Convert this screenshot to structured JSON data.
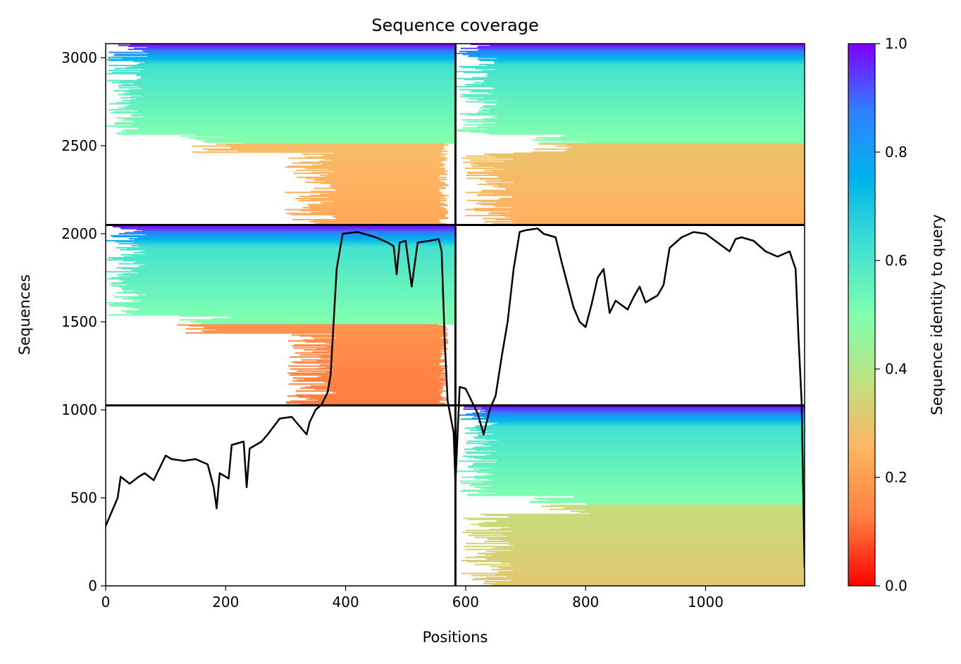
{
  "chart_data": {
    "type": "heatmap",
    "title": "Sequence coverage",
    "xlabel": "Positions",
    "ylabel": "Sequences",
    "xlim": [
      0,
      1165
    ],
    "ylim": [
      0,
      3080
    ],
    "x_ticks": [
      0,
      200,
      400,
      600,
      800,
      1000
    ],
    "y_ticks": [
      0,
      500,
      1000,
      1500,
      2000,
      2500,
      3000
    ],
    "colorbar": {
      "label": "Sequence identity to query",
      "colormap": "rainbow_r",
      "range": [
        0,
        1
      ],
      "ticks": [
        "0.0",
        "0.2",
        "0.4",
        "0.6",
        "0.8",
        "1.0"
      ],
      "colors": [
        "#ff0000",
        "#ff7f40",
        "#ffb360",
        "#c0e080",
        "#80ffb0",
        "#40e0d0",
        "#00b4eb",
        "#2f80ff",
        "#7f00ff"
      ]
    },
    "separators": {
      "vertical_x": [
        583
      ],
      "horizontal_y": [
        1025,
        2050
      ]
    },
    "blocks": [
      {
        "x0": 0,
        "x1": 583,
        "y0": 2050,
        "y1": 3080,
        "full_x0": 385,
        "full_x1": 555,
        "low_id": 0.22
      },
      {
        "x0": 583,
        "x1": 1165,
        "y0": 2050,
        "y1": 3080,
        "full_x0": 680,
        "full_x1": 1165,
        "low_id": 0.24
      },
      {
        "x0": 0,
        "x1": 583,
        "y0": 1025,
        "y1": 2050,
        "full_x0": 385,
        "full_x1": 555,
        "low_id": 0.12
      },
      {
        "x0": 583,
        "x1": 1165,
        "y0": 0,
        "y1": 1025,
        "full_x0": 680,
        "full_x1": 1165,
        "low_id": 0.31
      }
    ],
    "coverage_line": {
      "color": "#000000",
      "x": [
        0,
        10,
        20,
        25,
        40,
        55,
        65,
        80,
        100,
        110,
        130,
        150,
        170,
        180,
        185,
        190,
        205,
        210,
        230,
        235,
        240,
        260,
        270,
        290,
        310,
        330,
        335,
        340,
        350,
        360,
        370,
        375,
        385,
        395,
        420,
        430,
        450,
        470,
        480,
        485,
        490,
        500,
        510,
        520,
        540,
        555,
        560,
        565,
        570,
        580,
        583,
        590,
        600,
        620,
        630,
        640,
        650,
        660,
        670,
        680,
        690,
        700,
        720,
        730,
        750,
        760,
        780,
        790,
        800,
        810,
        820,
        830,
        840,
        850,
        870,
        880,
        890,
        900,
        920,
        930,
        940,
        960,
        980,
        1000,
        1020,
        1040,
        1050,
        1060,
        1080,
        1100,
        1120,
        1140,
        1150,
        1155,
        1160,
        1165
      ],
      "y": [
        340,
        420,
        500,
        620,
        580,
        620,
        640,
        600,
        740,
        720,
        710,
        720,
        690,
        560,
        440,
        640,
        610,
        800,
        820,
        560,
        780,
        820,
        860,
        950,
        960,
        880,
        860,
        930,
        1000,
        1030,
        1100,
        1200,
        1800,
        2000,
        2010,
        2000,
        1980,
        1950,
        1930,
        1770,
        1950,
        1960,
        1700,
        1950,
        1960,
        1970,
        1900,
        1400,
        1050,
        870,
        580,
        1130,
        1120,
        980,
        860,
        1000,
        1080,
        1300,
        1500,
        1800,
        2010,
        2020,
        2030,
        2000,
        1980,
        1840,
        1580,
        1500,
        1470,
        1600,
        1750,
        1800,
        1550,
        1620,
        1570,
        1640,
        1700,
        1610,
        1650,
        1710,
        1920,
        1980,
        2010,
        2000,
        1950,
        1900,
        1970,
        1980,
        1960,
        1900,
        1870,
        1900,
        1800,
        1400,
        1050,
        100
      ]
    }
  }
}
